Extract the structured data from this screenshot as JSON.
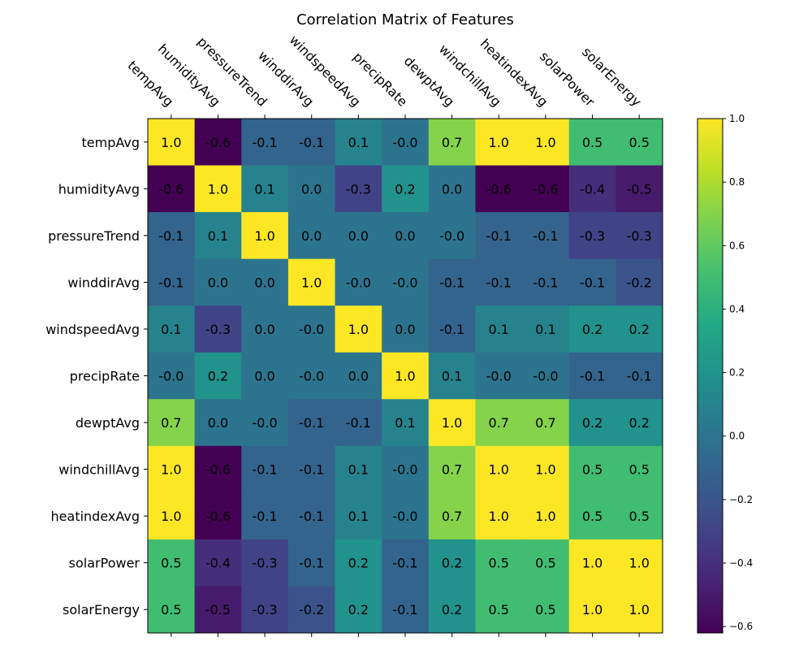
{
  "chart_data": {
    "type": "heatmap",
    "title": "Correlation Matrix of Features",
    "xlabel": "",
    "ylabel": "",
    "x_tick_position": "top",
    "x_tick_rotation": -45,
    "legend": "colorbar-right",
    "colormap": "viridis",
    "vmin": -0.62,
    "vmax": 1.0,
    "labels": [
      "tempAvg",
      "humidityAvg",
      "pressureTrend",
      "winddirAvg",
      "windspeedAvg",
      "precipRate",
      "dewptAvg",
      "windchillAvg",
      "heatindexAvg",
      "solarPower",
      "solarEnergy"
    ],
    "values": [
      [
        1.0,
        -0.62,
        -0.1,
        -0.1,
        0.1,
        -0.0,
        0.7,
        1.0,
        1.0,
        0.5,
        0.5
      ],
      [
        -0.62,
        1.0,
        0.1,
        0.0,
        -0.3,
        0.2,
        0.0,
        -0.62,
        -0.62,
        -0.4,
        -0.5
      ],
      [
        -0.1,
        0.1,
        1.0,
        0.0,
        0.0,
        0.0,
        -0.0,
        -0.1,
        -0.1,
        -0.3,
        -0.3
      ],
      [
        -0.1,
        0.0,
        0.0,
        1.0,
        -0.0,
        -0.0,
        -0.1,
        -0.1,
        -0.1,
        -0.1,
        -0.2
      ],
      [
        0.1,
        -0.3,
        0.0,
        -0.0,
        1.0,
        0.0,
        -0.1,
        0.1,
        0.1,
        0.2,
        0.2
      ],
      [
        -0.0,
        0.2,
        0.0,
        -0.0,
        0.0,
        1.0,
        0.1,
        -0.0,
        -0.0,
        -0.1,
        -0.1
      ],
      [
        0.7,
        0.0,
        -0.0,
        -0.1,
        -0.1,
        0.1,
        1.0,
        0.7,
        0.7,
        0.2,
        0.2
      ],
      [
        1.0,
        -0.62,
        -0.1,
        -0.1,
        0.1,
        -0.0,
        0.7,
        1.0,
        1.0,
        0.5,
        0.5
      ],
      [
        1.0,
        -0.62,
        -0.1,
        -0.1,
        0.1,
        -0.0,
        0.7,
        1.0,
        1.0,
        0.5,
        0.5
      ],
      [
        0.5,
        -0.4,
        -0.3,
        -0.1,
        0.2,
        -0.1,
        0.2,
        0.5,
        0.5,
        1.0,
        1.0
      ],
      [
        0.5,
        -0.5,
        -0.3,
        -0.2,
        0.2,
        -0.1,
        0.2,
        0.5,
        0.5,
        1.0,
        1.0
      ]
    ],
    "cell_text": [
      [
        "1.0",
        "-0.6",
        "-0.1",
        "-0.1",
        "0.1",
        "-0.0",
        "0.7",
        "1.0",
        "1.0",
        "0.5",
        "0.5"
      ],
      [
        "-0.6",
        "1.0",
        "0.1",
        "0.0",
        "-0.3",
        "0.2",
        "0.0",
        "-0.6",
        "-0.6",
        "-0.4",
        "-0.5"
      ],
      [
        "-0.1",
        "0.1",
        "1.0",
        "0.0",
        "0.0",
        "0.0",
        "-0.0",
        "-0.1",
        "-0.1",
        "-0.3",
        "-0.3"
      ],
      [
        "-0.1",
        "0.0",
        "0.0",
        "1.0",
        "-0.0",
        "-0.0",
        "-0.1",
        "-0.1",
        "-0.1",
        "-0.1",
        "-0.2"
      ],
      [
        "0.1",
        "-0.3",
        "0.0",
        "-0.0",
        "1.0",
        "0.0",
        "-0.1",
        "0.1",
        "0.1",
        "0.2",
        "0.2"
      ],
      [
        "-0.0",
        "0.2",
        "0.0",
        "-0.0",
        "0.0",
        "1.0",
        "0.1",
        "-0.0",
        "-0.0",
        "-0.1",
        "-0.1"
      ],
      [
        "0.7",
        "0.0",
        "-0.0",
        "-0.1",
        "-0.1",
        "0.1",
        "1.0",
        "0.7",
        "0.7",
        "0.2",
        "0.2"
      ],
      [
        "1.0",
        "-0.6",
        "-0.1",
        "-0.1",
        "0.1",
        "-0.0",
        "0.7",
        "1.0",
        "1.0",
        "0.5",
        "0.5"
      ],
      [
        "1.0",
        "-0.6",
        "-0.1",
        "-0.1",
        "0.1",
        "-0.0",
        "0.7",
        "1.0",
        "1.0",
        "0.5",
        "0.5"
      ],
      [
        "0.5",
        "-0.4",
        "-0.3",
        "-0.1",
        "0.2",
        "-0.1",
        "0.2",
        "0.5",
        "0.5",
        "1.0",
        "1.0"
      ],
      [
        "0.5",
        "-0.5",
        "-0.3",
        "-0.2",
        "0.2",
        "-0.1",
        "0.2",
        "0.5",
        "0.5",
        "1.0",
        "1.0"
      ]
    ],
    "colorbar_ticks": [
      1.0,
      0.8,
      0.6,
      0.4,
      0.2,
      0.0,
      -0.2,
      -0.4,
      -0.6
    ],
    "colorbar_tick_labels": [
      "1.0",
      "0.8",
      "0.6",
      "0.4",
      "0.2",
      "0.0",
      "−0.2",
      "−0.4",
      "−0.6"
    ]
  }
}
